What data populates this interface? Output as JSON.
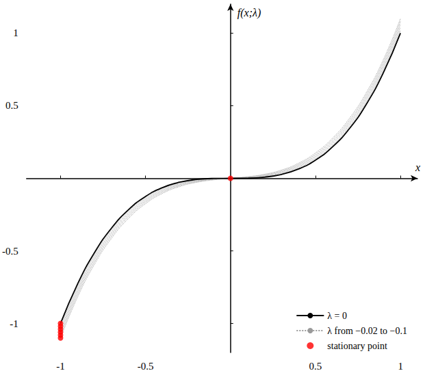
{
  "chart_data": {
    "type": "line",
    "xlabel": "x",
    "ylabel": "f(x;λ)",
    "xlim": [
      -1.2,
      1.1
    ],
    "ylim": [
      -1.2,
      1.2
    ],
    "xticks": [
      -1,
      -0.5,
      0.5,
      1
    ],
    "yticks": [
      -1,
      -0.5,
      0.5,
      1
    ],
    "grid": false,
    "legend": "lower right",
    "series": [
      {
        "name": "λ = 0",
        "type": "line",
        "color": "#000000",
        "line_style": "solid",
        "x": [
          -1,
          -0.9,
          -0.8,
          -0.7,
          -0.6,
          -0.5,
          -0.4,
          -0.3,
          -0.2,
          -0.1,
          0,
          0.1,
          0.2,
          0.3,
          0.4,
          0.5,
          0.6,
          0.7,
          0.8,
          0.9,
          1
        ],
        "values": [
          -1,
          -0.729,
          -0.512,
          -0.343,
          -0.216,
          -0.125,
          -0.064,
          -0.027,
          -0.008,
          -0.001,
          0,
          0.001,
          0.008,
          0.027,
          0.064,
          0.125,
          0.216,
          0.343,
          0.512,
          0.729,
          1
        ]
      },
      {
        "name": "λ from −0.02 to −0.1",
        "type": "line",
        "color": "#9a9a9a",
        "line_style": "dotted",
        "x": [
          -1,
          -0.9,
          -0.8,
          -0.7,
          -0.6,
          -0.5,
          -0.4,
          -0.3,
          -0.2,
          -0.1,
          0,
          0.1,
          0.2,
          0.3,
          0.4,
          0.5,
          0.6,
          0.7,
          0.8,
          0.9,
          1
        ],
        "values": [
          -1.02,
          -0.747,
          -0.528,
          -0.357,
          -0.228,
          -0.135,
          -0.072,
          -0.033,
          -0.012,
          -0.003,
          0,
          0.003,
          0.012,
          0.033,
          0.072,
          0.135,
          0.228,
          0.357,
          0.528,
          0.747,
          1.02
        ]
      },
      {
        "name": "λ from −0.02 to −0.1",
        "type": "line",
        "color": "#9a9a9a",
        "line_style": "dotted",
        "x": [
          -1,
          -0.9,
          -0.8,
          -0.7,
          -0.6,
          -0.5,
          -0.4,
          -0.3,
          -0.2,
          -0.1,
          0,
          0.1,
          0.2,
          0.3,
          0.4,
          0.5,
          0.6,
          0.7,
          0.8,
          0.9,
          1
        ],
        "values": [
          -1.04,
          -0.765,
          -0.544,
          -0.371,
          -0.24,
          -0.145,
          -0.08,
          -0.039,
          -0.016,
          -0.005,
          0,
          0.005,
          0.016,
          0.039,
          0.08,
          0.145,
          0.24,
          0.371,
          0.544,
          0.765,
          1.04
        ]
      },
      {
        "name": "λ from −0.02 to −0.1",
        "type": "line",
        "color": "#9a9a9a",
        "line_style": "dotted",
        "x": [
          -1,
          -0.9,
          -0.8,
          -0.7,
          -0.6,
          -0.5,
          -0.4,
          -0.3,
          -0.2,
          -0.1,
          0,
          0.1,
          0.2,
          0.3,
          0.4,
          0.5,
          0.6,
          0.7,
          0.8,
          0.9,
          1
        ],
        "values": [
          -1.06,
          -0.783,
          -0.56,
          -0.385,
          -0.252,
          -0.155,
          -0.088,
          -0.045,
          -0.02,
          -0.007,
          0,
          0.007,
          0.02,
          0.045,
          0.088,
          0.155,
          0.252,
          0.385,
          0.56,
          0.783,
          1.06
        ]
      },
      {
        "name": "λ from −0.02 to −0.1",
        "type": "line",
        "color": "#9a9a9a",
        "line_style": "dotted",
        "x": [
          -1,
          -0.9,
          -0.8,
          -0.7,
          -0.6,
          -0.5,
          -0.4,
          -0.3,
          -0.2,
          -0.1,
          0,
          0.1,
          0.2,
          0.3,
          0.4,
          0.5,
          0.6,
          0.7,
          0.8,
          0.9,
          1
        ],
        "values": [
          -1.08,
          -0.801,
          -0.576,
          -0.399,
          -0.264,
          -0.165,
          -0.096,
          -0.051,
          -0.024,
          -0.009,
          0,
          0.009,
          0.024,
          0.051,
          0.096,
          0.165,
          0.264,
          0.399,
          0.576,
          0.801,
          1.08
        ]
      },
      {
        "name": "λ from −0.02 to −0.1",
        "type": "line",
        "color": "#9a9a9a",
        "line_style": "dotted",
        "x": [
          -1,
          -0.9,
          -0.8,
          -0.7,
          -0.6,
          -0.5,
          -0.4,
          -0.3,
          -0.2,
          -0.1,
          0,
          0.1,
          0.2,
          0.3,
          0.4,
          0.5,
          0.6,
          0.7,
          0.8,
          0.9,
          1
        ],
        "values": [
          -1.1,
          -0.819,
          -0.592,
          -0.413,
          -0.276,
          -0.175,
          -0.104,
          -0.057,
          -0.028,
          -0.011,
          0,
          0.011,
          0.028,
          0.057,
          0.104,
          0.175,
          0.276,
          0.413,
          0.592,
          0.819,
          1.1
        ]
      },
      {
        "name": "stationary point",
        "type": "scatter",
        "color": "#ff0000",
        "marker": "circle",
        "x": [
          0,
          -1,
          -1,
          -1,
          -1,
          -1,
          -1
        ],
        "values": [
          0,
          -1,
          -1.02,
          -1.04,
          -1.06,
          -1.08,
          -1.1
        ]
      }
    ]
  }
}
